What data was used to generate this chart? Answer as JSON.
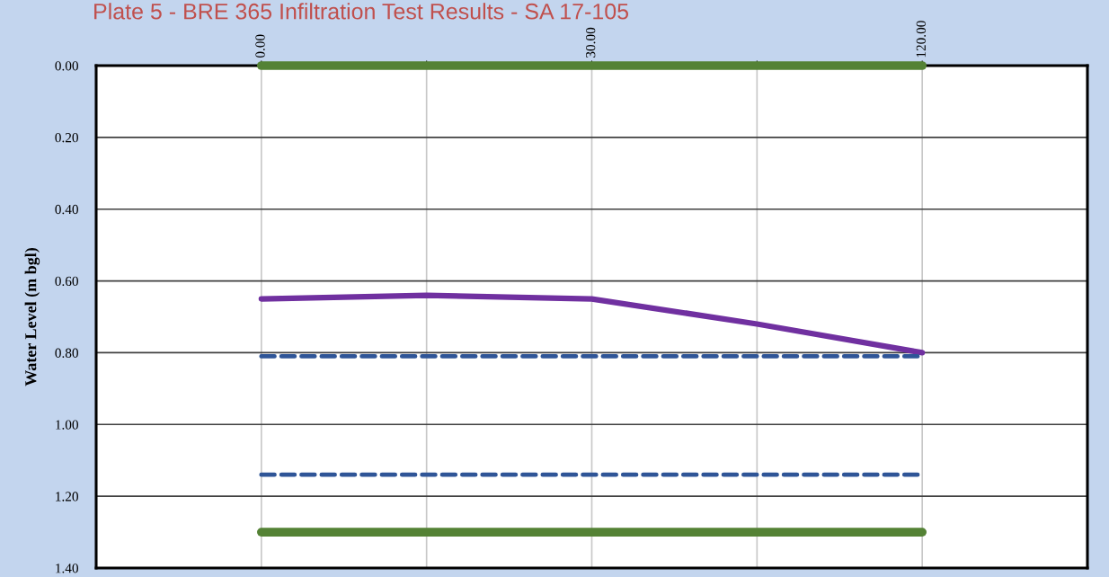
{
  "chart_data": {
    "type": "line",
    "title": "Plate 5 - BRE 365 Infiltration Test Results - SA 17-105",
    "ylabel": "Water Level (m bgl)",
    "categories": [
      "0.00",
      null,
      "30.00",
      null,
      "120.00"
    ],
    "series": [
      {
        "color": "#548235",
        "values": [
          0.0,
          0.0,
          0.0,
          0.0,
          0.0
        ],
        "line_style": "solid"
      },
      {
        "color": "#7030a0",
        "values": [
          0.65,
          0.64,
          0.65,
          0.72,
          0.8
        ],
        "line_style": "solid"
      },
      {
        "color": "#2f5597",
        "values": [
          0.81,
          0.81,
          0.81,
          0.81,
          0.81
        ],
        "line_style": "dashed"
      },
      {
        "color": "#2f5597",
        "values": [
          1.14,
          1.14,
          1.14,
          1.14,
          1.14
        ],
        "line_style": "dashed"
      },
      {
        "color": "#548235",
        "values": [
          1.3,
          1.3,
          1.3,
          1.3,
          1.3
        ],
        "line_style": "solid"
      }
    ],
    "ylim": [
      1.4,
      0.0
    ],
    "yticks": [
      {
        "value": 0.0,
        "label": "0.00"
      },
      {
        "value": 0.2,
        "label": "0.20"
      },
      {
        "value": 0.4,
        "label": "0.40"
      },
      {
        "value": 0.6,
        "label": "0.60"
      },
      {
        "value": 0.8,
        "label": "0.80"
      },
      {
        "value": 1.0,
        "label": "1.00"
      },
      {
        "value": 1.2,
        "label": "1.20"
      },
      {
        "value": 1.4,
        "label": "1.40"
      }
    ],
    "grid": true,
    "legend": false,
    "marker": "none"
  }
}
